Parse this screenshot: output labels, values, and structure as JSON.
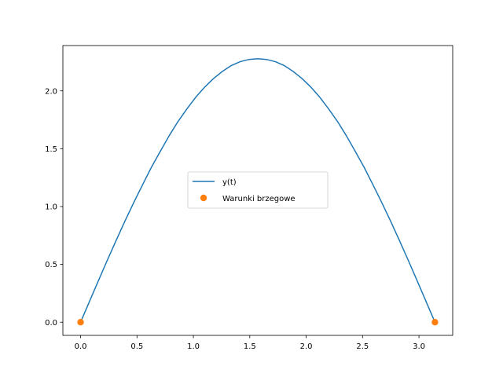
{
  "chart_data": {
    "type": "line",
    "title": "",
    "xlabel": "",
    "ylabel": "",
    "xlim": [
      -0.157,
      3.299
    ],
    "ylim": [
      -0.114,
      2.392
    ],
    "xticks": [
      0.0,
      0.5,
      1.0,
      1.5,
      2.0,
      2.5,
      3.0
    ],
    "xtick_labels": [
      "0.0",
      "0.5",
      "1.0",
      "1.5",
      "2.0",
      "2.5",
      "3.0"
    ],
    "yticks": [
      0.0,
      0.5,
      1.0,
      1.5,
      2.0
    ],
    "ytick_labels": [
      "0.0",
      "0.5",
      "1.0",
      "1.5",
      "2.0"
    ],
    "grid": false,
    "legend_position": "center",
    "series": [
      {
        "name": "y(t)",
        "kind": "line",
        "color": "#1f77b4",
        "x": [
          0.0,
          0.0785,
          0.1571,
          0.2356,
          0.3142,
          0.3927,
          0.4712,
          0.5498,
          0.6283,
          0.7069,
          0.7854,
          0.8639,
          0.9425,
          1.021,
          1.0996,
          1.1781,
          1.2566,
          1.3352,
          1.4137,
          1.4923,
          1.5708,
          1.6493,
          1.7279,
          1.8064,
          1.885,
          1.9635,
          2.042,
          2.1206,
          2.1991,
          2.2777,
          2.3562,
          2.4347,
          2.5133,
          2.5918,
          2.6704,
          2.7489,
          2.8274,
          2.906,
          2.9845,
          3.0631,
          3.1416
        ],
        "y": [
          0.0,
          0.1785,
          0.3565,
          0.5329,
          0.7048,
          0.8725,
          1.0343,
          1.1887,
          1.3402,
          1.4778,
          1.6123,
          1.7356,
          1.8443,
          1.9453,
          2.0324,
          2.1064,
          2.1678,
          2.2186,
          2.2523,
          2.2718,
          2.2785,
          2.2718,
          2.2523,
          2.2186,
          2.1678,
          2.1064,
          2.0324,
          1.9453,
          1.8443,
          1.7356,
          1.6123,
          1.4778,
          1.3402,
          1.1887,
          1.0343,
          0.8725,
          0.7048,
          0.5329,
          0.3565,
          0.1785,
          0.0
        ]
      },
      {
        "name": "Warunki brzegowe",
        "kind": "scatter",
        "color": "#ff7f0e",
        "x": [
          0.0,
          3.1416
        ],
        "y": [
          0.0,
          0.0
        ]
      }
    ]
  }
}
